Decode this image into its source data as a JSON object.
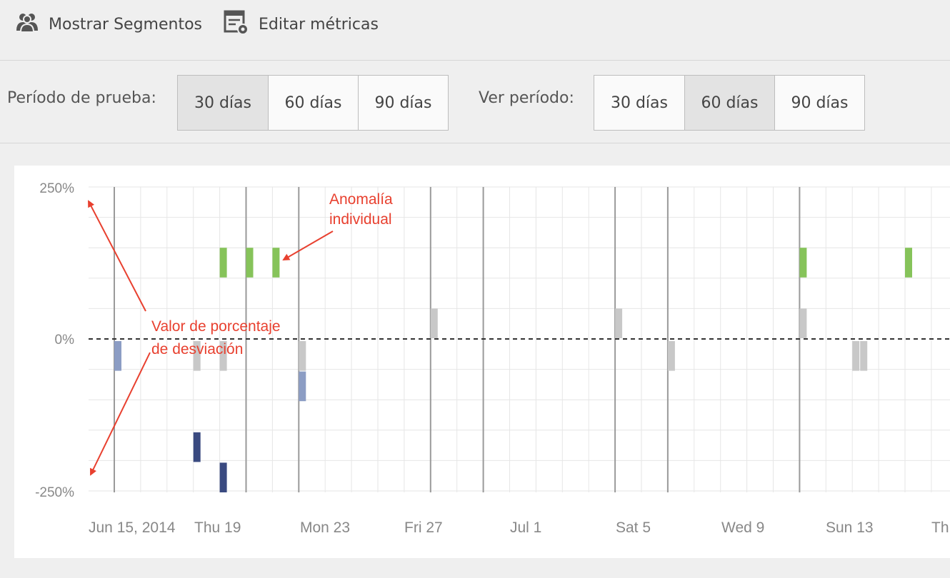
{
  "toolbar": {
    "show_segments_label": "Mostrar Segmentos",
    "edit_metrics_label": "Editar métricas"
  },
  "training_period": {
    "label": "Período de prueba:",
    "options": [
      "30 días",
      "60 días",
      "90 días"
    ],
    "selected": "30 días"
  },
  "view_period": {
    "label": "Ver período:",
    "options": [
      "30 días",
      "60 días",
      "90 días"
    ],
    "selected": "60 días"
  },
  "colors": {
    "positive_anomaly": "#86c35a",
    "neutral": "#c8c8c8",
    "negative_light": "#8c9dc4",
    "negative_dark": "#3a4a80",
    "annotation": "#e8402f"
  },
  "chart_data": {
    "type": "bar",
    "y_unit": "%",
    "ylim": [
      -250,
      250
    ],
    "y_tick_labels": [
      "250%",
      "0%",
      "-250%"
    ],
    "x_tick_labels": [
      "Jun 15, 2014",
      "Thu 19",
      "Mon 23",
      "Fri 27",
      "Jul 1",
      "Sat 5",
      "Wed 9",
      "Sun 13",
      "Th"
    ],
    "bars": [
      {
        "date": "2014-06-15",
        "value": -50,
        "color": "negative_light"
      },
      {
        "date": "2014-06-18",
        "value": -50,
        "color": "neutral"
      },
      {
        "date": "2014-06-18",
        "value": -200,
        "color": "negative_dark"
      },
      {
        "date": "2014-06-19",
        "value": 150,
        "color": "positive_anomaly"
      },
      {
        "date": "2014-06-19",
        "value": -50,
        "color": "neutral"
      },
      {
        "date": "2014-06-19",
        "value": -250,
        "color": "negative_dark"
      },
      {
        "date": "2014-06-20",
        "value": 150,
        "color": "positive_anomaly"
      },
      {
        "date": "2014-06-21",
        "value": 150,
        "color": "positive_anomaly"
      },
      {
        "date": "2014-06-22",
        "value": -50,
        "color": "neutral"
      },
      {
        "date": "2014-06-22",
        "value": -100,
        "color": "negative_light"
      },
      {
        "date": "2014-06-27",
        "value": 50,
        "color": "neutral"
      },
      {
        "date": "2014-07-04",
        "value": 50,
        "color": "neutral"
      },
      {
        "date": "2014-07-06",
        "value": -50,
        "color": "neutral"
      },
      {
        "date": "2014-07-11",
        "value": 150,
        "color": "positive_anomaly"
      },
      {
        "date": "2014-07-11",
        "value": 50,
        "color": "neutral"
      },
      {
        "date": "2014-07-13",
        "value": -50,
        "color": "neutral"
      },
      {
        "date": "2014-07-13",
        "value": -50,
        "color": "neutral"
      },
      {
        "date": "2014-07-15",
        "value": 150,
        "color": "positive_anomaly"
      }
    ],
    "annotations": [
      {
        "text_lines": [
          "Anomalía",
          "individual"
        ]
      },
      {
        "text_lines": [
          "Valor de porcentaje",
          "de desviación"
        ]
      }
    ]
  }
}
